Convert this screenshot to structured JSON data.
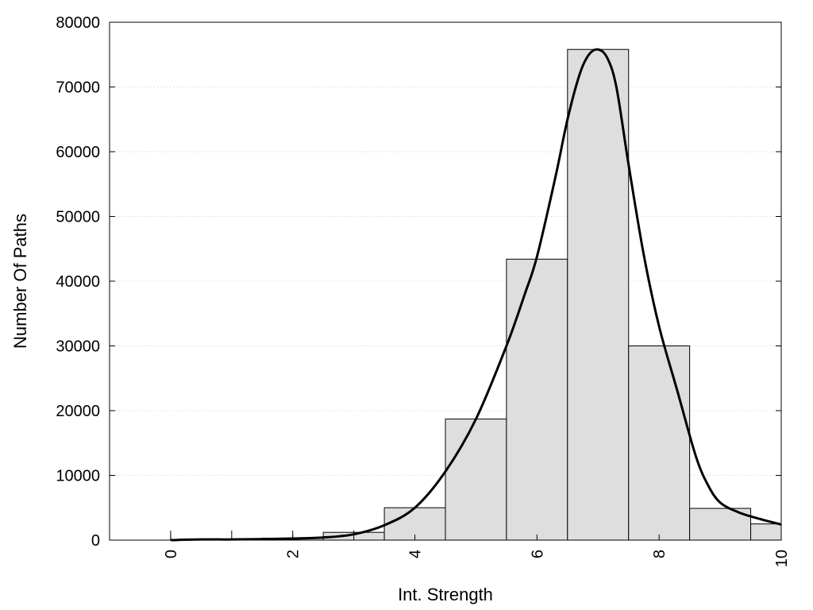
{
  "chart_data": {
    "type": "bar",
    "xlabel": "Int. Strength",
    "ylabel": "Number Of Paths",
    "xlim": [
      -1,
      10
    ],
    "ylim": [
      0,
      80000
    ],
    "x_ticks": [
      0,
      2,
      4,
      6,
      8,
      10
    ],
    "y_ticks": [
      0,
      10000,
      20000,
      30000,
      40000,
      50000,
      60000,
      70000,
      80000
    ],
    "grid": "horizontal-dotted",
    "bars": [
      {
        "x": 0,
        "value": 0
      },
      {
        "x": 1,
        "value": 0
      },
      {
        "x": 2,
        "value": 300
      },
      {
        "x": 3,
        "value": 1200
      },
      {
        "x": 4,
        "value": 5000
      },
      {
        "x": 5,
        "value": 18700
      },
      {
        "x": 6,
        "value": 43400
      },
      {
        "x": 7,
        "value": 75800
      },
      {
        "x": 8,
        "value": 30000
      },
      {
        "x": 9,
        "value": 4900
      },
      {
        "x": 10,
        "value": 2500
      }
    ],
    "bar_width": 1,
    "curve": {
      "x": [
        0,
        0.5,
        1,
        1.5,
        2,
        2.5,
        3,
        3.5,
        4,
        4.5,
        5,
        5.5,
        5.8,
        6,
        6.3,
        6.5,
        6.7,
        6.85,
        7,
        7.15,
        7.3,
        7.5,
        7.75,
        8,
        8.3,
        8.6,
        8.8,
        9,
        9.3,
        9.6,
        10
      ],
      "y": [
        0,
        100,
        100,
        150,
        250,
        400,
        900,
        2300,
        5000,
        10600,
        18700,
        30000,
        38000,
        43800,
        56000,
        65000,
        72000,
        75000,
        75800,
        74500,
        70000,
        58000,
        44000,
        33000,
        23000,
        13000,
        8500,
        5800,
        4300,
        3400,
        2400
      ]
    },
    "markers": [
      0,
      1,
      2,
      3
    ]
  }
}
